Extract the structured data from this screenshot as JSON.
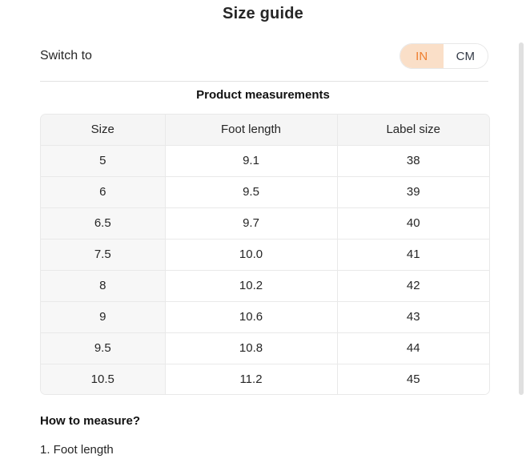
{
  "page": {
    "title": "Size guide"
  },
  "unit_switch": {
    "label": "Switch to",
    "options": [
      {
        "label": "IN",
        "selected": true
      },
      {
        "label": "CM",
        "selected": false
      }
    ]
  },
  "table": {
    "title": "Product measurements",
    "columns": [
      "Size",
      "Foot length",
      "Label size"
    ],
    "rows": [
      [
        "5",
        "9.1",
        "38"
      ],
      [
        "6",
        "9.5",
        "39"
      ],
      [
        "6.5",
        "9.7",
        "40"
      ],
      [
        "7.5",
        "10.0",
        "41"
      ],
      [
        "8",
        "10.2",
        "42"
      ],
      [
        "9",
        "10.6",
        "43"
      ],
      [
        "9.5",
        "10.8",
        "44"
      ],
      [
        "10.5",
        "11.2",
        "45"
      ]
    ]
  },
  "how_to_measure": {
    "heading": "How to measure?",
    "items": [
      "1. Foot length"
    ]
  },
  "colors": {
    "text": "#262626",
    "accent_orange": "#ef7e2e",
    "accent_peach": "#fadfc8",
    "cm_text": "#333a46",
    "toggle_border": "#e7e7e7",
    "divider": "#e2e2e2",
    "table_border": "#e9e9e9",
    "header_bg": "#f5f5f5",
    "size_col_bg": "#f7f7f7",
    "scrollbar": "#e0e0e0"
  }
}
